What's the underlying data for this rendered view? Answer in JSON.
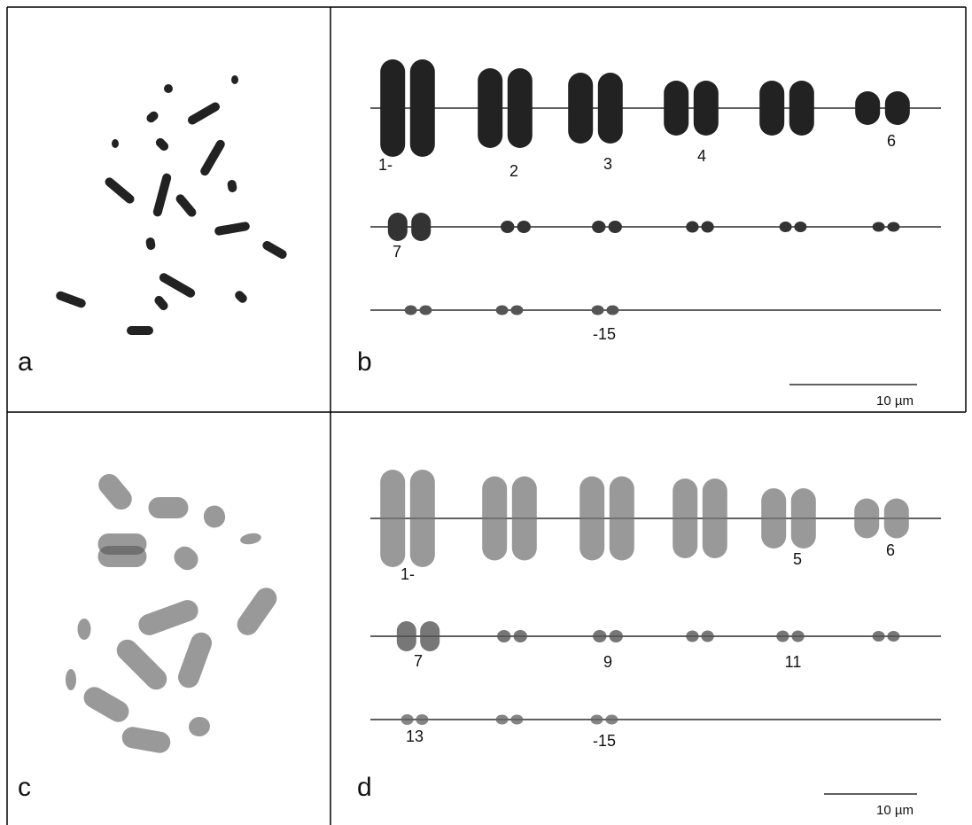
{
  "panels": [
    {
      "label": "a"
    },
    {
      "label": "b",
      "chromosome_labels": [
        "1-",
        "2",
        "3",
        "4",
        "6",
        "7",
        "-15"
      ],
      "scale_bar": "10 µm"
    },
    {
      "label": "c"
    },
    {
      "label": "d",
      "chromosome_labels": [
        "1-",
        "5",
        "6",
        "7",
        "9",
        "11",
        "13",
        "-15"
      ],
      "scale_bar": "10 µm"
    }
  ]
}
